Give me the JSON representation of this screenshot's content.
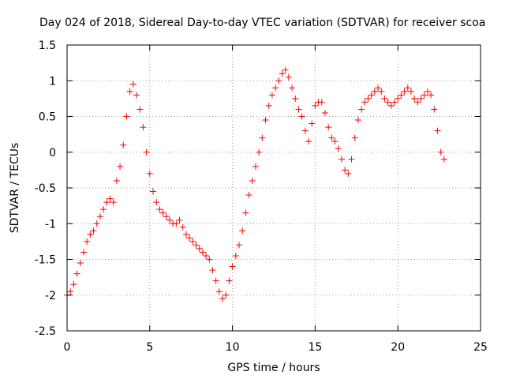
{
  "chart_data": {
    "type": "scatter",
    "title": "Day 024 of 2018, Sidereal Day-to-day VTEC variation (SDTVAR) for receiver scoa",
    "xlabel": "GPS time / hours",
    "ylabel": "SDTVAR / TECUs",
    "xlim": [
      0,
      25
    ],
    "ylim": [
      -2.5,
      1.5
    ],
    "xticks": [
      0,
      5,
      10,
      15,
      20,
      25
    ],
    "xtick_labels": [
      "0",
      "5",
      "10",
      "15",
      "20",
      "25"
    ],
    "yticks": [
      -2.5,
      -2,
      -1.5,
      -1,
      -0.5,
      0,
      0.5,
      1,
      1.5
    ],
    "ytick_labels": [
      "-2.5",
      "-2",
      "-1.5",
      "-1",
      "-0.5",
      "0",
      "0.5",
      "1",
      "1.5"
    ],
    "grid": true,
    "marker": "+",
    "color": "#ff0000",
    "series": [
      {
        "name": "SDTVAR",
        "x": [
          0.0,
          0.2,
          0.4,
          0.6,
          0.8,
          1.0,
          1.2,
          1.4,
          1.6,
          1.8,
          2.0,
          2.2,
          2.4,
          2.6,
          2.8,
          3.0,
          3.2,
          3.4,
          3.6,
          3.8,
          4.0,
          4.2,
          4.4,
          4.6,
          4.8,
          5.0,
          5.2,
          5.4,
          5.6,
          5.8,
          6.0,
          6.2,
          6.4,
          6.6,
          6.8,
          7.0,
          7.2,
          7.4,
          7.6,
          7.8,
          8.0,
          8.2,
          8.4,
          8.6,
          8.8,
          9.0,
          9.2,
          9.4,
          9.6,
          9.8,
          10.0,
          10.2,
          10.4,
          10.6,
          10.8,
          11.0,
          11.2,
          11.4,
          11.6,
          11.8,
          12.0,
          12.2,
          12.4,
          12.6,
          12.8,
          13.0,
          13.2,
          13.4,
          13.6,
          13.8,
          14.0,
          14.2,
          14.4,
          14.6,
          14.8,
          15.0,
          15.2,
          15.4,
          15.6,
          15.8,
          16.0,
          16.2,
          16.4,
          16.6,
          16.8,
          17.0,
          17.2,
          17.4,
          17.6,
          17.8,
          18.0,
          18.2,
          18.4,
          18.6,
          18.8,
          19.0,
          19.2,
          19.4,
          19.6,
          19.8,
          20.0,
          20.2,
          20.4,
          20.6,
          20.8,
          21.0,
          21.2,
          21.4,
          21.6,
          21.8,
          22.0,
          22.2,
          22.4,
          22.6,
          22.8
        ],
        "y": [
          -2.0,
          -1.95,
          -1.85,
          -1.7,
          -1.55,
          -1.4,
          -1.25,
          -1.15,
          -1.1,
          -1.0,
          -0.9,
          -0.8,
          -0.7,
          -0.65,
          -0.7,
          -0.4,
          -0.2,
          0.1,
          0.5,
          0.85,
          0.95,
          0.8,
          0.6,
          0.35,
          0.0,
          -0.3,
          -0.55,
          -0.7,
          -0.8,
          -0.85,
          -0.9,
          -0.95,
          -1.0,
          -1.0,
          -0.95,
          -1.05,
          -1.15,
          -1.2,
          -1.25,
          -1.3,
          -1.35,
          -1.4,
          -1.45,
          -1.5,
          -1.65,
          -1.8,
          -1.95,
          -2.05,
          -2.0,
          -1.8,
          -1.6,
          -1.45,
          -1.3,
          -1.1,
          -0.85,
          -0.6,
          -0.4,
          -0.2,
          0.0,
          0.2,
          0.45,
          0.65,
          0.8,
          0.9,
          1.0,
          1.1,
          1.15,
          1.05,
          0.9,
          0.75,
          0.6,
          0.5,
          0.3,
          0.15,
          0.4,
          0.65,
          0.7,
          0.7,
          0.55,
          0.35,
          0.2,
          0.15,
          0.05,
          -0.1,
          -0.25,
          -0.3,
          -0.1,
          0.2,
          0.45,
          0.6,
          0.7,
          0.75,
          0.8,
          0.85,
          0.9,
          0.85,
          0.75,
          0.7,
          0.65,
          0.7,
          0.75,
          0.8,
          0.85,
          0.9,
          0.85,
          0.75,
          0.7,
          0.75,
          0.8,
          0.85,
          0.8,
          0.6,
          0.3,
          0.0,
          -0.1
        ]
      }
    ]
  }
}
